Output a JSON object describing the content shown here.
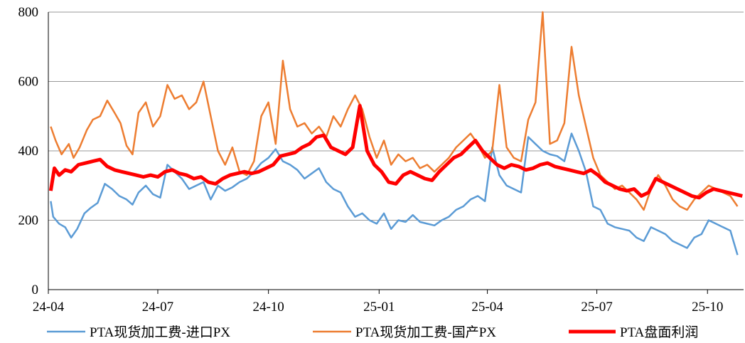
{
  "chart_data": {
    "type": "line",
    "title": "",
    "xlabel": "",
    "ylabel": "",
    "ylim": [
      0,
      800
    ],
    "y_ticks": [
      "0",
      "200",
      "400",
      "600",
      "800"
    ],
    "x_ticks": [
      "24-04",
      "24-07",
      "24-10",
      "25-01",
      "25-04",
      "25-07",
      "25-10"
    ],
    "grid": "horizontal",
    "legend_position": "bottom",
    "series": [
      {
        "name": "PTA现货加工费-进口PX",
        "color": "#5B9BD5",
        "points": [
          [
            "24-04-03",
            255
          ],
          [
            "24-04-05",
            210
          ],
          [
            "24-04-10",
            190
          ],
          [
            "24-04-15",
            180
          ],
          [
            "24-04-20",
            150
          ],
          [
            "24-04-25",
            175
          ],
          [
            "24-05-01",
            220
          ],
          [
            "24-05-06",
            235
          ],
          [
            "24-05-12",
            250
          ],
          [
            "24-05-18",
            305
          ],
          [
            "24-05-24",
            290
          ],
          [
            "24-05-30",
            270
          ],
          [
            "24-06-05",
            260
          ],
          [
            "24-06-10",
            245
          ],
          [
            "24-06-15",
            280
          ],
          [
            "24-06-21",
            300
          ],
          [
            "24-06-27",
            275
          ],
          [
            "24-07-03",
            265
          ],
          [
            "24-07-09",
            360
          ],
          [
            "24-07-15",
            340
          ],
          [
            "24-07-21",
            320
          ],
          [
            "24-07-27",
            290
          ],
          [
            "24-08-02",
            300
          ],
          [
            "24-08-08",
            310
          ],
          [
            "24-08-14",
            260
          ],
          [
            "24-08-20",
            300
          ],
          [
            "24-08-26",
            285
          ],
          [
            "24-09-01",
            295
          ],
          [
            "24-09-07",
            310
          ],
          [
            "24-09-13",
            320
          ],
          [
            "24-09-19",
            340
          ],
          [
            "24-09-25",
            365
          ],
          [
            "24-10-01",
            380
          ],
          [
            "24-10-07",
            405
          ],
          [
            "24-10-13",
            370
          ],
          [
            "24-10-19",
            360
          ],
          [
            "24-10-25",
            345
          ],
          [
            "24-10-31",
            320
          ],
          [
            "24-11-06",
            335
          ],
          [
            "24-11-12",
            350
          ],
          [
            "24-11-18",
            310
          ],
          [
            "24-11-24",
            290
          ],
          [
            "24-11-30",
            280
          ],
          [
            "24-12-06",
            240
          ],
          [
            "24-12-12",
            210
          ],
          [
            "24-12-18",
            220
          ],
          [
            "24-12-24",
            200
          ],
          [
            "24-12-30",
            190
          ],
          [
            "25-01-05",
            220
          ],
          [
            "25-01-11",
            175
          ],
          [
            "25-01-17",
            200
          ],
          [
            "25-01-23",
            195
          ],
          [
            "25-01-29",
            215
          ],
          [
            "25-02-04",
            195
          ],
          [
            "25-02-10",
            190
          ],
          [
            "25-02-16",
            185
          ],
          [
            "25-02-22",
            200
          ],
          [
            "25-02-28",
            210
          ],
          [
            "25-03-06",
            230
          ],
          [
            "25-03-12",
            240
          ],
          [
            "25-03-18",
            260
          ],
          [
            "25-03-24",
            270
          ],
          [
            "25-03-30",
            255
          ],
          [
            "25-04-05",
            410
          ],
          [
            "25-04-11",
            330
          ],
          [
            "25-04-17",
            300
          ],
          [
            "25-04-23",
            290
          ],
          [
            "25-04-29",
            280
          ],
          [
            "25-05-05",
            440
          ],
          [
            "25-05-11",
            420
          ],
          [
            "25-05-17",
            400
          ],
          [
            "25-05-23",
            390
          ],
          [
            "25-05-29",
            385
          ],
          [
            "25-06-04",
            370
          ],
          [
            "25-06-10",
            450
          ],
          [
            "25-06-16",
            400
          ],
          [
            "25-06-22",
            340
          ],
          [
            "25-06-28",
            240
          ],
          [
            "25-07-04",
            230
          ],
          [
            "25-07-10",
            190
          ],
          [
            "25-07-16",
            180
          ],
          [
            "25-07-22",
            175
          ],
          [
            "25-07-28",
            170
          ],
          [
            "25-08-03",
            150
          ],
          [
            "25-08-09",
            140
          ],
          [
            "25-08-15",
            180
          ],
          [
            "25-08-21",
            170
          ],
          [
            "25-08-27",
            160
          ],
          [
            "25-09-02",
            140
          ],
          [
            "25-09-08",
            130
          ],
          [
            "25-09-14",
            120
          ],
          [
            "25-09-20",
            150
          ],
          [
            "25-09-26",
            160
          ],
          [
            "25-10-02",
            200
          ],
          [
            "25-10-08",
            190
          ],
          [
            "25-10-14",
            180
          ],
          [
            "25-10-20",
            170
          ],
          [
            "25-10-26",
            100
          ]
        ]
      },
      {
        "name": "PTA现货加工费-国产PX",
        "color": "#ED7D31",
        "points": [
          [
            "24-04-03",
            470
          ],
          [
            "24-04-07",
            430
          ],
          [
            "24-04-12",
            390
          ],
          [
            "24-04-18",
            420
          ],
          [
            "24-04-22",
            380
          ],
          [
            "24-04-27",
            410
          ],
          [
            "24-05-03",
            460
          ],
          [
            "24-05-08",
            490
          ],
          [
            "24-05-14",
            500
          ],
          [
            "24-05-20",
            545
          ],
          [
            "24-05-26",
            510
          ],
          [
            "24-05-31",
            480
          ],
          [
            "24-06-05",
            415
          ],
          [
            "24-06-10",
            390
          ],
          [
            "24-06-15",
            510
          ],
          [
            "24-06-21",
            540
          ],
          [
            "24-06-27",
            470
          ],
          [
            "24-07-03",
            500
          ],
          [
            "24-07-09",
            590
          ],
          [
            "24-07-15",
            550
          ],
          [
            "24-07-21",
            560
          ],
          [
            "24-07-27",
            520
          ],
          [
            "24-08-02",
            540
          ],
          [
            "24-08-08",
            600
          ],
          [
            "24-08-14",
            500
          ],
          [
            "24-08-20",
            400
          ],
          [
            "24-08-26",
            360
          ],
          [
            "24-09-01",
            410
          ],
          [
            "24-09-07",
            340
          ],
          [
            "24-09-13",
            330
          ],
          [
            "24-09-19",
            370
          ],
          [
            "24-09-25",
            500
          ],
          [
            "24-10-01",
            540
          ],
          [
            "24-10-07",
            420
          ],
          [
            "24-10-13",
            660
          ],
          [
            "24-10-19",
            520
          ],
          [
            "24-10-25",
            470
          ],
          [
            "24-10-31",
            480
          ],
          [
            "24-11-06",
            450
          ],
          [
            "24-11-12",
            470
          ],
          [
            "24-11-18",
            440
          ],
          [
            "24-11-24",
            500
          ],
          [
            "24-11-30",
            470
          ],
          [
            "24-12-06",
            520
          ],
          [
            "24-12-12",
            560
          ],
          [
            "24-12-18",
            520
          ],
          [
            "24-12-24",
            440
          ],
          [
            "24-12-30",
            380
          ],
          [
            "25-01-05",
            430
          ],
          [
            "25-01-11",
            360
          ],
          [
            "25-01-17",
            390
          ],
          [
            "25-01-23",
            370
          ],
          [
            "25-01-29",
            380
          ],
          [
            "25-02-04",
            350
          ],
          [
            "25-02-10",
            360
          ],
          [
            "25-02-16",
            340
          ],
          [
            "25-02-22",
            360
          ],
          [
            "25-02-28",
            380
          ],
          [
            "25-03-06",
            410
          ],
          [
            "25-03-12",
            430
          ],
          [
            "25-03-18",
            450
          ],
          [
            "25-03-24",
            420
          ],
          [
            "25-03-30",
            380
          ],
          [
            "25-04-05",
            400
          ],
          [
            "25-04-11",
            590
          ],
          [
            "25-04-17",
            410
          ],
          [
            "25-04-23",
            380
          ],
          [
            "25-04-29",
            370
          ],
          [
            "25-05-05",
            490
          ],
          [
            "25-05-11",
            540
          ],
          [
            "25-05-17",
            800
          ],
          [
            "25-05-23",
            420
          ],
          [
            "25-05-29",
            430
          ],
          [
            "25-06-04",
            480
          ],
          [
            "25-06-10",
            700
          ],
          [
            "25-06-16",
            560
          ],
          [
            "25-06-22",
            470
          ],
          [
            "25-06-28",
            380
          ],
          [
            "25-07-04",
            330
          ],
          [
            "25-07-10",
            310
          ],
          [
            "25-07-16",
            290
          ],
          [
            "25-07-22",
            300
          ],
          [
            "25-07-28",
            280
          ],
          [
            "25-08-03",
            260
          ],
          [
            "25-08-09",
            230
          ],
          [
            "25-08-15",
            290
          ],
          [
            "25-08-21",
            330
          ],
          [
            "25-08-27",
            300
          ],
          [
            "25-09-02",
            260
          ],
          [
            "25-09-08",
            240
          ],
          [
            "25-09-14",
            230
          ],
          [
            "25-09-20",
            260
          ],
          [
            "25-09-26",
            280
          ],
          [
            "25-10-02",
            300
          ],
          [
            "25-10-08",
            290
          ],
          [
            "25-10-14",
            280
          ],
          [
            "25-10-20",
            270
          ],
          [
            "25-10-26",
            240
          ]
        ]
      },
      {
        "name": "PTA盘面利润",
        "color": "#FF0000",
        "points": [
          [
            "24-04-03",
            285
          ],
          [
            "24-04-06",
            350
          ],
          [
            "24-04-10",
            330
          ],
          [
            "24-04-15",
            345
          ],
          [
            "24-04-20",
            340
          ],
          [
            "24-04-26",
            360
          ],
          [
            "24-05-02",
            365
          ],
          [
            "24-05-08",
            370
          ],
          [
            "24-05-14",
            375
          ],
          [
            "24-05-20",
            355
          ],
          [
            "24-05-26",
            345
          ],
          [
            "24-06-01",
            340
          ],
          [
            "24-06-07",
            335
          ],
          [
            "24-06-13",
            330
          ],
          [
            "24-06-19",
            325
          ],
          [
            "24-06-25",
            330
          ],
          [
            "24-07-01",
            325
          ],
          [
            "24-07-07",
            340
          ],
          [
            "24-07-13",
            345
          ],
          [
            "24-07-19",
            335
          ],
          [
            "24-07-25",
            330
          ],
          [
            "24-07-31",
            320
          ],
          [
            "24-08-06",
            325
          ],
          [
            "24-08-12",
            310
          ],
          [
            "24-08-18",
            305
          ],
          [
            "24-08-24",
            320
          ],
          [
            "24-08-30",
            330
          ],
          [
            "24-09-05",
            335
          ],
          [
            "24-09-11",
            340
          ],
          [
            "24-09-17",
            335
          ],
          [
            "24-09-23",
            340
          ],
          [
            "24-09-29",
            350
          ],
          [
            "24-10-05",
            360
          ],
          [
            "24-10-11",
            385
          ],
          [
            "24-10-17",
            390
          ],
          [
            "24-10-23",
            395
          ],
          [
            "24-10-29",
            410
          ],
          [
            "24-11-04",
            420
          ],
          [
            "24-11-10",
            440
          ],
          [
            "24-11-16",
            445
          ],
          [
            "24-11-22",
            410
          ],
          [
            "24-11-28",
            400
          ],
          [
            "24-12-04",
            390
          ],
          [
            "24-12-10",
            410
          ],
          [
            "24-12-16",
            530
          ],
          [
            "24-12-22",
            400
          ],
          [
            "24-12-28",
            360
          ],
          [
            "25-01-03",
            340
          ],
          [
            "25-01-09",
            310
          ],
          [
            "25-01-15",
            305
          ],
          [
            "25-01-21",
            330
          ],
          [
            "25-01-27",
            340
          ],
          [
            "25-02-02",
            330
          ],
          [
            "25-02-08",
            320
          ],
          [
            "25-02-14",
            315
          ],
          [
            "25-02-20",
            340
          ],
          [
            "25-02-26",
            360
          ],
          [
            "25-03-04",
            380
          ],
          [
            "25-03-10",
            390
          ],
          [
            "25-03-16",
            410
          ],
          [
            "25-03-22",
            430
          ],
          [
            "25-03-28",
            400
          ],
          [
            "25-04-03",
            380
          ],
          [
            "25-04-09",
            360
          ],
          [
            "25-04-15",
            350
          ],
          [
            "25-04-21",
            360
          ],
          [
            "25-04-27",
            355
          ],
          [
            "25-05-03",
            345
          ],
          [
            "25-05-09",
            350
          ],
          [
            "25-05-15",
            360
          ],
          [
            "25-05-21",
            365
          ],
          [
            "25-05-27",
            355
          ],
          [
            "25-06-02",
            350
          ],
          [
            "25-06-08",
            345
          ],
          [
            "25-06-14",
            340
          ],
          [
            "25-06-20",
            335
          ],
          [
            "25-06-26",
            345
          ],
          [
            "25-07-02",
            330
          ],
          [
            "25-07-08",
            310
          ],
          [
            "25-07-14",
            300
          ],
          [
            "25-07-20",
            290
          ],
          [
            "25-07-26",
            285
          ],
          [
            "25-08-01",
            290
          ],
          [
            "25-08-07",
            270
          ],
          [
            "25-08-13",
            280
          ],
          [
            "25-08-19",
            320
          ],
          [
            "25-08-25",
            310
          ],
          [
            "25-08-31",
            300
          ],
          [
            "25-09-06",
            290
          ],
          [
            "25-09-12",
            280
          ],
          [
            "25-09-18",
            270
          ],
          [
            "25-09-24",
            265
          ],
          [
            "25-09-30",
            280
          ],
          [
            "25-10-06",
            290
          ],
          [
            "25-10-12",
            285
          ],
          [
            "25-10-18",
            280
          ],
          [
            "25-10-24",
            275
          ],
          [
            "25-10-30",
            270
          ]
        ]
      }
    ]
  }
}
